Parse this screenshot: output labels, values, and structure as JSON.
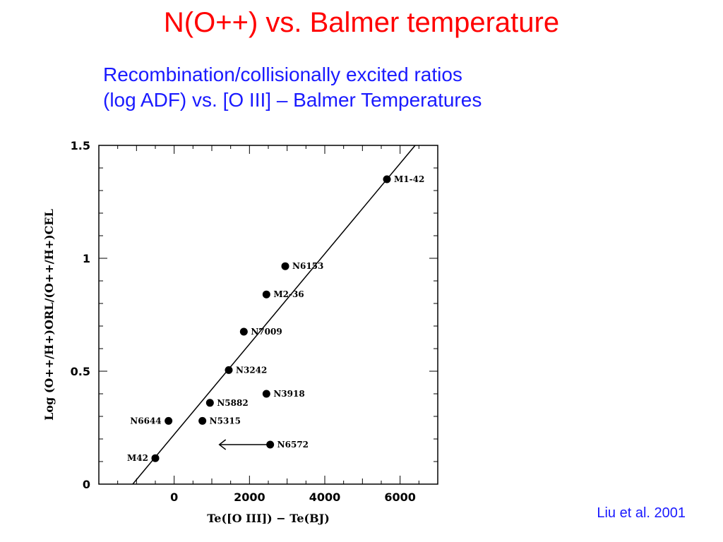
{
  "slide": {
    "title": "N(O++) vs. Balmer temperature",
    "subtitle_line1": "Recombination/collisionally excited ratios",
    "subtitle_line2": "(log ADF) vs. [O III] – Balmer Temperatures",
    "credit": "Liu et al. 2001",
    "title_color": "#ff0000",
    "text_color": "#1a1aff"
  },
  "chart_data": {
    "type": "scatter",
    "title": "",
    "xlabel": "Te([O III]) − Te(BJ)",
    "ylabel": "Log (O++/H+)ORL/(O++/H+)CEL",
    "xlim": [
      -2000,
      7000
    ],
    "ylim": [
      0,
      1.5
    ],
    "xticks": [
      0,
      2000,
      4000,
      6000
    ],
    "xtick_labels": [
      "0",
      "2000",
      "4000",
      "6000"
    ],
    "yticks": [
      0,
      0.5,
      1,
      1.5
    ],
    "ytick_labels": [
      "0",
      "0.5",
      "1",
      "1.5"
    ],
    "grid": false,
    "legend": false,
    "points": [
      {
        "label": "M1-42",
        "x": 5650,
        "y": 1.35,
        "label_side": "right"
      },
      {
        "label": "N6153",
        "x": 2950,
        "y": 0.965,
        "label_side": "right"
      },
      {
        "label": "M2-36",
        "x": 2450,
        "y": 0.84,
        "label_side": "right"
      },
      {
        "label": "N7009",
        "x": 1850,
        "y": 0.675,
        "label_side": "right"
      },
      {
        "label": "N3242",
        "x": 1450,
        "y": 0.505,
        "label_side": "right"
      },
      {
        "label": "N3918",
        "x": 2450,
        "y": 0.4,
        "label_side": "right"
      },
      {
        "label": "N5882",
        "x": 950,
        "y": 0.36,
        "label_side": "right"
      },
      {
        "label": "N5315",
        "x": 750,
        "y": 0.28,
        "label_side": "right"
      },
      {
        "label": "N6644",
        "x": -150,
        "y": 0.28,
        "label_side": "left"
      },
      {
        "label": "N6572",
        "x": 2550,
        "y": 0.175,
        "label_side": "right"
      },
      {
        "label": "M42",
        "x": -500,
        "y": 0.115,
        "label_side": "left"
      }
    ],
    "upper_limit_arrow": {
      "from_x": 2550,
      "to_x": 1200,
      "y": 0.175
    },
    "fit_line": {
      "x1": -1100,
      "y1": 0,
      "x2": 7000,
      "y2": 1.62
    }
  }
}
